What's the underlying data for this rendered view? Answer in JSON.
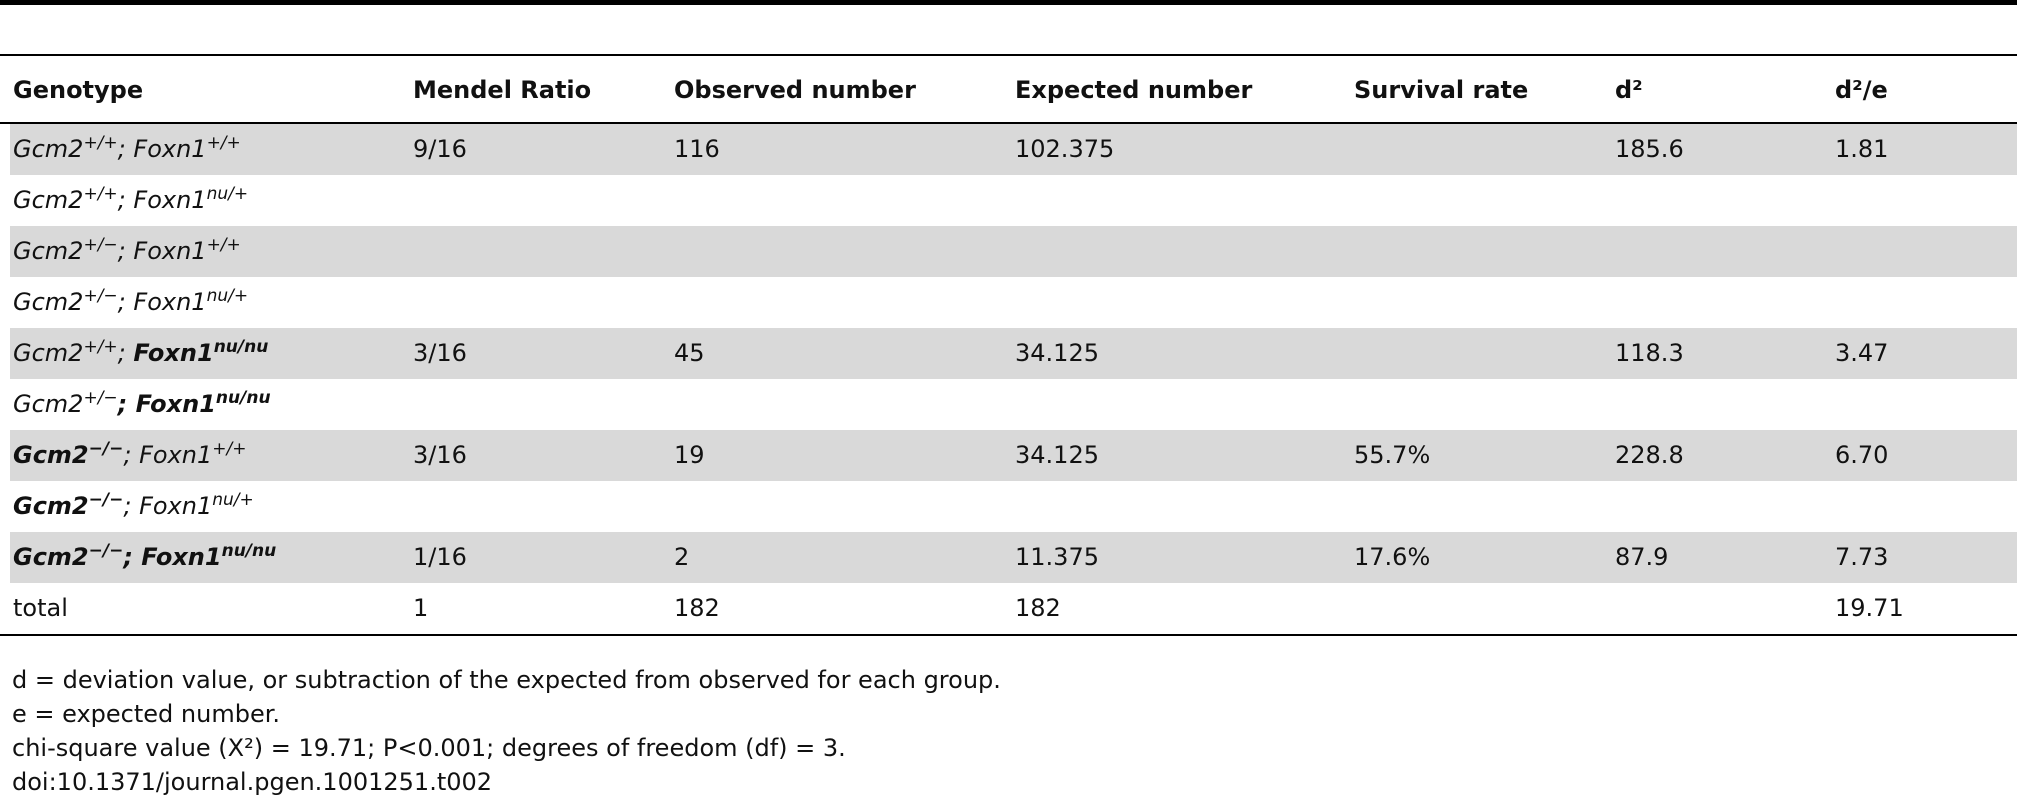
{
  "table": {
    "headers": [
      "Genotype",
      "Mendel Ratio",
      "Observed number",
      "Expected number",
      "Survival rate",
      "d²",
      "d²/e"
    ],
    "rows": [
      {
        "genotype": [
          {
            "text": "Gcm2",
            "bold": false
          },
          {
            "text": "+/+",
            "sup": true,
            "bold": false
          },
          {
            "text": "; ",
            "bold": false
          },
          {
            "text": "Foxn1",
            "bold": false
          },
          {
            "text": "+/+",
            "sup": true,
            "bold": false
          }
        ],
        "cells": [
          "9/16",
          "116",
          "102.375",
          null,
          "185.6",
          "1.81"
        ],
        "shaded": true
      },
      {
        "genotype": [
          {
            "text": "Gcm2",
            "bold": false
          },
          {
            "text": "+/+",
            "sup": true,
            "bold": false
          },
          {
            "text": "; ",
            "bold": false
          },
          {
            "text": "Foxn1",
            "bold": false
          },
          {
            "text": "nu/+",
            "sup": true,
            "bold": false
          }
        ],
        "cells": [
          null,
          null,
          null,
          null,
          null,
          null
        ],
        "shaded": false
      },
      {
        "genotype": [
          {
            "text": "Gcm2",
            "bold": false
          },
          {
            "text": "+/−",
            "sup": true,
            "bold": false
          },
          {
            "text": "; ",
            "bold": false
          },
          {
            "text": "Foxn1",
            "bold": false
          },
          {
            "text": "+/+",
            "sup": true,
            "bold": false
          }
        ],
        "cells": [
          null,
          null,
          null,
          null,
          null,
          null
        ],
        "shaded": true
      },
      {
        "genotype": [
          {
            "text": "Gcm2",
            "bold": false
          },
          {
            "text": "+/−",
            "sup": true,
            "bold": false
          },
          {
            "text": "; ",
            "bold": false
          },
          {
            "text": "Foxn1",
            "bold": false
          },
          {
            "text": "nu/+",
            "sup": true,
            "bold": false
          }
        ],
        "cells": [
          null,
          null,
          null,
          null,
          null,
          null
        ],
        "shaded": false
      },
      {
        "genotype": [
          {
            "text": "Gcm2",
            "bold": false
          },
          {
            "text": "+/+",
            "sup": true,
            "bold": false
          },
          {
            "text": "; ",
            "bold": false
          },
          {
            "text": "Foxn1",
            "bold": true
          },
          {
            "text": "nu/nu",
            "sup": true,
            "bold": true
          }
        ],
        "cells": [
          "3/16",
          "45",
          "34.125",
          null,
          "118.3",
          "3.47"
        ],
        "shaded": true
      },
      {
        "genotype": [
          {
            "text": "Gcm2",
            "bold": false
          },
          {
            "text": "+/−",
            "sup": true,
            "bold": false
          },
          {
            "text": "; ",
            "bold": true
          },
          {
            "text": "Foxn1",
            "bold": true
          },
          {
            "text": "nu/nu",
            "sup": true,
            "bold": true
          }
        ],
        "cells": [
          null,
          null,
          null,
          null,
          null,
          null
        ],
        "shaded": false
      },
      {
        "genotype": [
          {
            "text": "Gcm2",
            "bold": true
          },
          {
            "text": "−/−",
            "sup": true,
            "bold": true
          },
          {
            "text": "; ",
            "bold": false
          },
          {
            "text": "Foxn1",
            "bold": false
          },
          {
            "text": "+/+",
            "sup": true,
            "bold": false
          }
        ],
        "cells": [
          "3/16",
          "19",
          "34.125",
          "55.7%",
          "228.8",
          "6.70"
        ],
        "shaded": true
      },
      {
        "genotype": [
          {
            "text": "Gcm2",
            "bold": true
          },
          {
            "text": "−/−",
            "sup": true,
            "bold": true
          },
          {
            "text": "; ",
            "bold": false
          },
          {
            "text": "Foxn1",
            "bold": false
          },
          {
            "text": "nu/+",
            "sup": true,
            "bold": false
          }
        ],
        "cells": [
          null,
          null,
          null,
          null,
          null,
          null
        ],
        "shaded": false
      },
      {
        "genotype": [
          {
            "text": "Gcm2",
            "bold": true
          },
          {
            "text": "−/−",
            "sup": true,
            "bold": true
          },
          {
            "text": "; ",
            "bold": true
          },
          {
            "text": "Foxn1",
            "bold": true
          },
          {
            "text": "nu/nu",
            "sup": true,
            "bold": true
          }
        ],
        "cells": [
          "1/16",
          "2",
          "11.375",
          "17.6%",
          "87.9",
          "7.73"
        ],
        "shaded": true
      },
      {
        "genotype": [
          {
            "text": "total",
            "bold": false,
            "plain": true
          }
        ],
        "cells": [
          "1",
          "182",
          "182",
          null,
          null,
          "19.71"
        ],
        "shaded": false
      }
    ]
  },
  "footnotes": [
    "d =  deviation value, or subtraction of the expected from observed for each group.",
    "e =  expected number.",
    "chi-square value (X²)  = 19.71; P<0.001; degrees of freedom (df) = 3.",
    "doi:10.1371/journal.pgen.1001251.t002"
  ]
}
